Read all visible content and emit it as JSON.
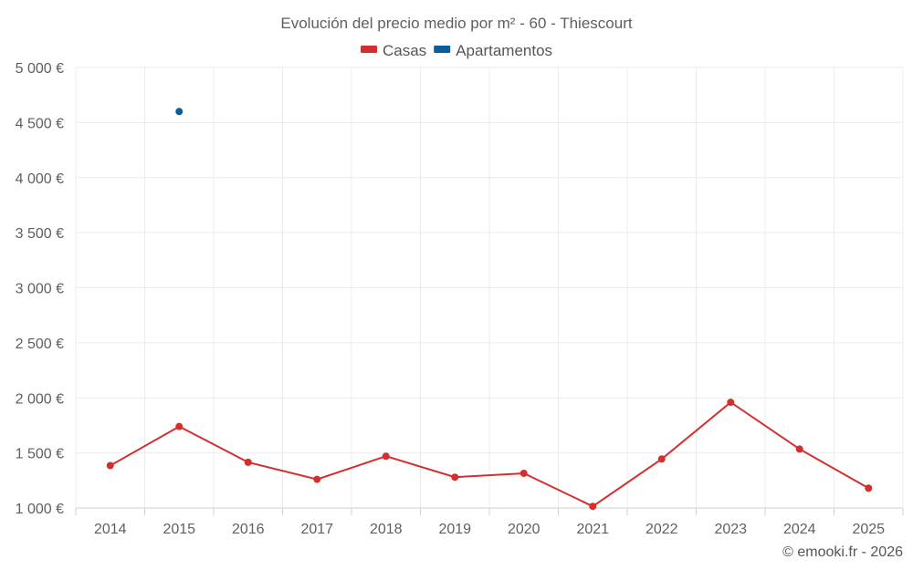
{
  "chart_data": {
    "type": "line",
    "title": "Evolución del precio medio por m² - 60 - Thiescourt",
    "categories": [
      "2014",
      "2015",
      "2016",
      "2017",
      "2018",
      "2019",
      "2020",
      "2021",
      "2022",
      "2023",
      "2024",
      "2025"
    ],
    "ylim": [
      1000,
      5000
    ],
    "yticks": [
      1000,
      1500,
      2000,
      2500,
      3000,
      3500,
      4000,
      4500,
      5000
    ],
    "ytick_labels": [
      "1 000 €",
      "1 500 €",
      "2 000 €",
      "2 500 €",
      "3 000 €",
      "3 500 €",
      "4 000 €",
      "4 500 €",
      "5 000 €"
    ],
    "grid": true,
    "legend_position": "top-center",
    "series": [
      {
        "name": "Casas",
        "color": "#d32f2f",
        "values": [
          1385,
          1740,
          1415,
          1260,
          1470,
          1280,
          1315,
          1015,
          1445,
          1960,
          1535,
          1180
        ]
      },
      {
        "name": "Apartamentos",
        "color": "#0b5e9c",
        "values": [
          null,
          4600,
          null,
          null,
          null,
          null,
          null,
          null,
          null,
          null,
          null,
          null
        ]
      }
    ],
    "credit": "© emooki.fr - 2026"
  }
}
